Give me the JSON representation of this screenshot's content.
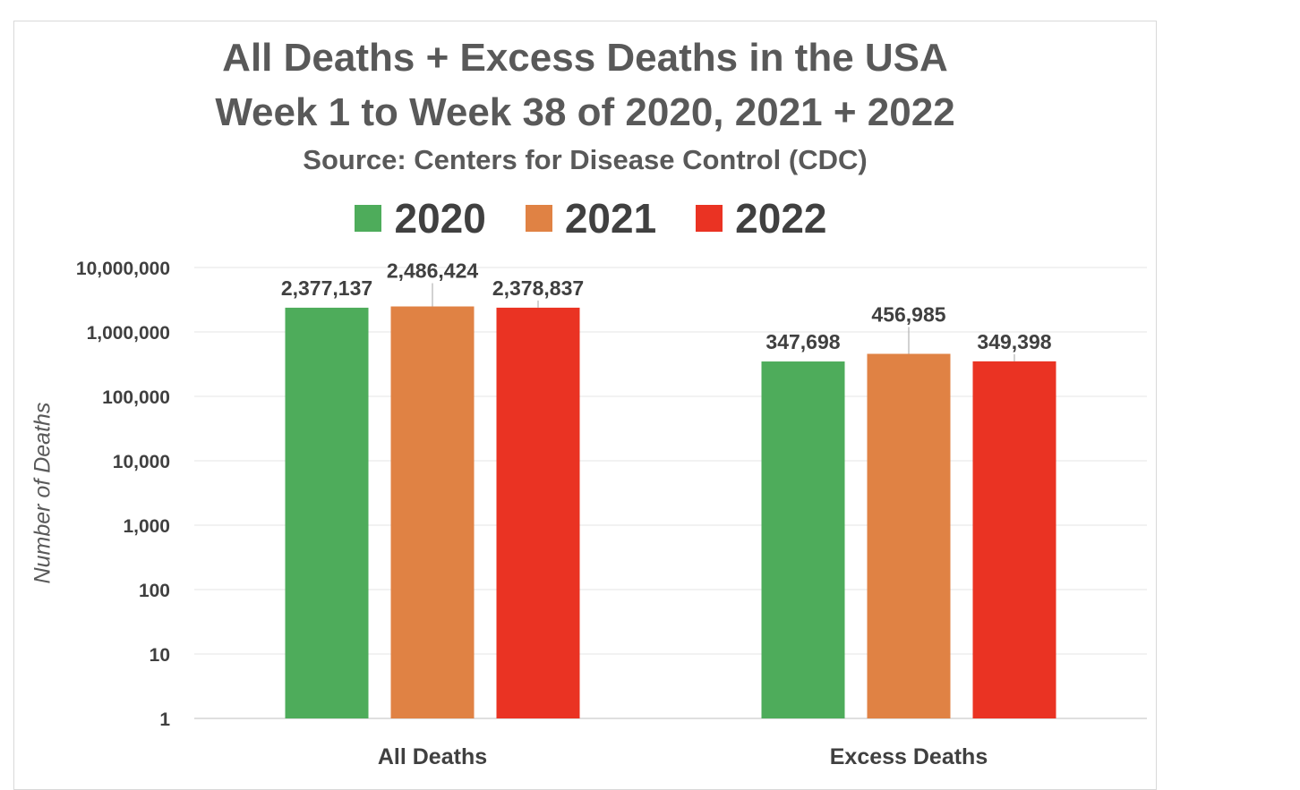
{
  "chart_data": {
    "type": "bar",
    "title": "All Deaths + Excess Deaths in the USA",
    "title_line2": "Week 1 to Week 38 of 2020, 2021 + 2022",
    "subtitle": "Source: Centers for Disease Control (CDC)",
    "ylabel": "Number of Deaths",
    "yscale": "log",
    "ylim": [
      1,
      10000000
    ],
    "yticks": [
      {
        "value": 1,
        "label": "1"
      },
      {
        "value": 10,
        "label": "10"
      },
      {
        "value": 100,
        "label": "100"
      },
      {
        "value": 1000,
        "label": "1,000"
      },
      {
        "value": 10000,
        "label": "10,000"
      },
      {
        "value": 100000,
        "label": "100,000"
      },
      {
        "value": 1000000,
        "label": "1,000,000"
      },
      {
        "value": 10000000,
        "label": "10,000,000"
      }
    ],
    "categories": [
      "All Deaths",
      "Excess Deaths"
    ],
    "legend_position": "top",
    "grid": true,
    "series": [
      {
        "name": "2020",
        "color": "#4eac5b",
        "values": [
          2377137,
          347698
        ],
        "labels": [
          "2,377,137",
          "347,698"
        ]
      },
      {
        "name": "2021",
        "color": "#e08244",
        "values": [
          2486424,
          456985
        ],
        "labels": [
          "2,486,424",
          "456,985"
        ]
      },
      {
        "name": "2022",
        "color": "#ea3323",
        "values": [
          2378837,
          349398
        ],
        "labels": [
          "2,378,837",
          "349,398"
        ]
      }
    ]
  }
}
